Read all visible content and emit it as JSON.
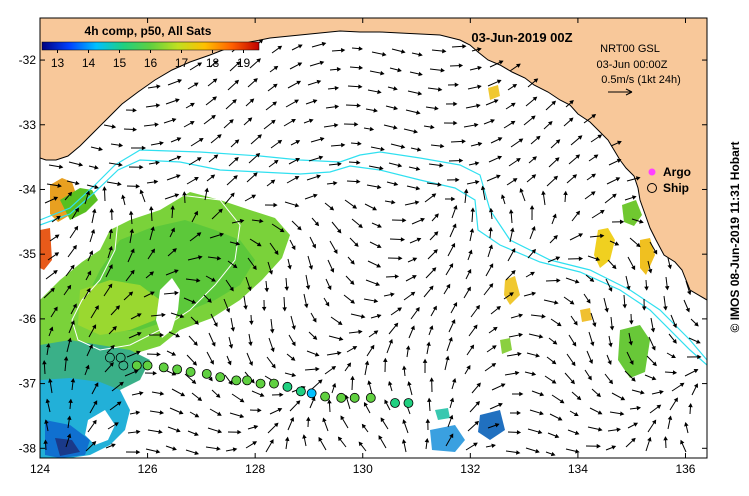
{
  "title": "4h comp, p50, All Sats",
  "date_title": "03-Jun-2019 00Z",
  "colorbar": {
    "ticks": [
      "13",
      "14",
      "15",
      "16",
      "17",
      "18",
      "19"
    ],
    "values": [
      13,
      14,
      15,
      16,
      17,
      18,
      19
    ],
    "min": 12.5,
    "max": 19.5,
    "colors": [
      "#000080",
      "#0040ff",
      "#00c0ff",
      "#20d080",
      "#60d040",
      "#c0e020",
      "#ffc000",
      "#ff6000",
      "#c00000"
    ]
  },
  "current_info": {
    "line1": "NRT00 GSL",
    "line2": "03-Jun 00:00Z",
    "line3": "0.5m/s (1kt 24h)"
  },
  "legend": {
    "argo": "Argo",
    "ship": "Ship"
  },
  "credit": "© IMOS 08-Jun-2019 11:31 Hobart",
  "axes": {
    "lon_ticks": [
      "124",
      "126",
      "128",
      "130",
      "132",
      "134",
      "136"
    ],
    "lon_values": [
      124,
      126,
      128,
      130,
      132,
      134,
      136
    ],
    "lat_ticks": [
      "-32",
      "-33",
      "-34",
      "-35",
      "-36",
      "-37",
      "-38"
    ],
    "lat_values": [
      -32,
      -33,
      -34,
      -35,
      -36,
      -37,
      -38
    ],
    "lon_range": [
      124,
      136.4
    ],
    "lat_range": [
      -38.15,
      -31.35
    ]
  },
  "ship_obs": [
    {
      "lon": 125.3,
      "lat": -36.6,
      "temp": null
    },
    {
      "lon": 125.5,
      "lat": -36.6,
      "temp": null
    },
    {
      "lon": 125.55,
      "lat": -36.72,
      "temp": null
    },
    {
      "lon": 125.8,
      "lat": -36.72,
      "temp": 16.3
    },
    {
      "lon": 126.0,
      "lat": -36.72,
      "temp": 16.3
    },
    {
      "lon": 126.3,
      "lat": -36.75,
      "temp": 16.4
    },
    {
      "lon": 126.55,
      "lat": -36.78,
      "temp": 16.2
    },
    {
      "lon": 126.8,
      "lat": -36.82,
      "temp": 16.1
    },
    {
      "lon": 127.1,
      "lat": -36.85,
      "temp": 16.2
    },
    {
      "lon": 127.35,
      "lat": -36.9,
      "temp": 16.0
    },
    {
      "lon": 127.65,
      "lat": -36.95,
      "temp": 16.0
    },
    {
      "lon": 127.85,
      "lat": -36.95,
      "temp": 16.0
    },
    {
      "lon": 128.1,
      "lat": -37.0,
      "temp": 15.9
    },
    {
      "lon": 128.35,
      "lat": -37.0,
      "temp": 15.8
    },
    {
      "lon": 128.6,
      "lat": -37.05,
      "temp": 15.5
    },
    {
      "lon": 128.85,
      "lat": -37.12,
      "temp": 15.2
    },
    {
      "lon": 129.05,
      "lat": -37.15,
      "temp": 14.6
    },
    {
      "lon": 129.3,
      "lat": -37.2,
      "temp": 15.8
    },
    {
      "lon": 129.6,
      "lat": -37.22,
      "temp": 16.0
    },
    {
      "lon": 129.85,
      "lat": -37.22,
      "temp": 16.0
    },
    {
      "lon": 130.15,
      "lat": -37.22,
      "temp": 16.0
    },
    {
      "lon": 130.6,
      "lat": -37.3,
      "temp": 15.3
    },
    {
      "lon": 130.85,
      "lat": -37.3,
      "temp": 15.3
    }
  ]
}
